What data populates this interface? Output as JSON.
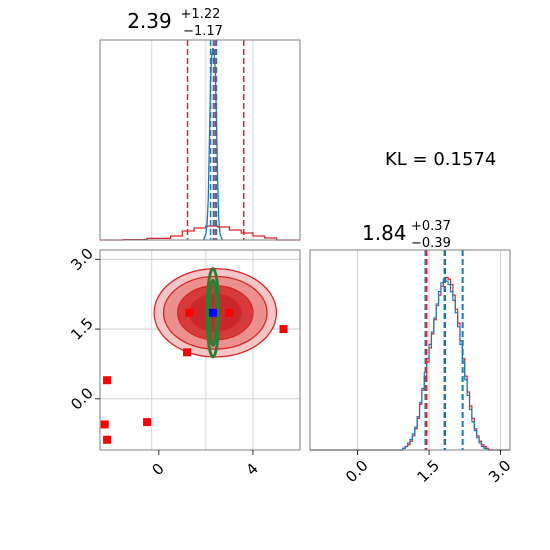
{
  "annotation": {
    "kl_label": "KL = 0.1574"
  },
  "chart_data": [
    {
      "type": "histogram",
      "panel": "param1-marginal",
      "title": {
        "value": "2.39",
        "plus": "+1.22",
        "minus": "−1.17"
      },
      "x_range": [
        -2.5,
        6.0
      ],
      "grid_x": [
        -0.3,
        2.0,
        4.0
      ],
      "series": [
        {
          "name": "",
          "color": "#d62728",
          "style": "step",
          "bins": [
            [
              -2.5,
              -1.5,
              0.0
            ],
            [
              -1.5,
              -0.5,
              0.002
            ],
            [
              -0.5,
              0.5,
              0.008
            ],
            [
              0.5,
              1.0,
              0.02
            ],
            [
              1.0,
              1.5,
              0.045
            ],
            [
              1.5,
              2.0,
              0.06
            ],
            [
              2.0,
              2.5,
              0.07
            ],
            [
              2.5,
              3.0,
              0.065
            ],
            [
              3.0,
              3.5,
              0.05
            ],
            [
              3.5,
              4.0,
              0.035
            ],
            [
              4.0,
              4.5,
              0.02
            ],
            [
              4.5,
              5.0,
              0.01
            ],
            [
              5.0,
              6.0,
              0.0
            ]
          ],
          "quantiles": [
            1.22,
            2.39,
            3.61
          ]
        },
        {
          "name": "",
          "color": "#1f77b4",
          "style": "line",
          "x": [
            1.9,
            2.0,
            2.05,
            2.1,
            2.15,
            2.2,
            2.25,
            2.3,
            2.35,
            2.4,
            2.45,
            2.5,
            2.55,
            2.6,
            2.7
          ],
          "y": [
            0.0,
            0.03,
            0.08,
            0.2,
            0.5,
            0.8,
            0.92,
            0.96,
            0.94,
            0.85,
            0.6,
            0.3,
            0.1,
            0.03,
            0.0
          ],
          "quantiles": [
            2.2,
            2.32,
            2.45
          ]
        }
      ],
      "ylim": [
        0,
        1.0
      ]
    },
    {
      "type": "histogram",
      "panel": "param2-marginal",
      "title": {
        "value": "1.84",
        "plus": "+0.37",
        "minus": "−0.39"
      },
      "x_range": [
        -1.0,
        3.2
      ],
      "xticks": [
        "0.0",
        "1.5",
        "3.0"
      ],
      "xtick_values": [
        0.0,
        1.5,
        3.0
      ],
      "grid_x": [
        0.0,
        1.5,
        3.0
      ],
      "series": [
        {
          "name": "",
          "color": "#d62728",
          "style": "step",
          "x_start": 0.9,
          "bin_width": 0.05,
          "counts": [
            0.0,
            0.01,
            0.02,
            0.03,
            0.05,
            0.08,
            0.12,
            0.18,
            0.26,
            0.34,
            0.42,
            0.5,
            0.58,
            0.66,
            0.74,
            0.82,
            0.88,
            0.93,
            0.96,
            0.98,
            0.97,
            0.94,
            0.88,
            0.8,
            0.72,
            0.62,
            0.52,
            0.42,
            0.33,
            0.25,
            0.18,
            0.12,
            0.08,
            0.05,
            0.03,
            0.02,
            0.01,
            0.0
          ],
          "quantiles": [
            1.45,
            1.84,
            2.21
          ]
        },
        {
          "name": "",
          "color": "#1f77b4",
          "style": "step",
          "x_start": 0.9,
          "bin_width": 0.05,
          "counts": [
            0.0,
            0.01,
            0.02,
            0.04,
            0.06,
            0.09,
            0.13,
            0.19,
            0.27,
            0.35,
            0.44,
            0.52,
            0.6,
            0.67,
            0.75,
            0.83,
            0.9,
            0.95,
            0.97,
            0.96,
            0.94,
            0.9,
            0.85,
            0.78,
            0.7,
            0.6,
            0.5,
            0.4,
            0.31,
            0.23,
            0.16,
            0.11,
            0.07,
            0.04,
            0.02,
            0.01,
            0.0,
            0.0
          ],
          "quantiles": [
            1.42,
            1.82,
            2.2
          ]
        }
      ],
      "ylim": [
        0,
        1.0
      ]
    },
    {
      "type": "scatter",
      "panel": "joint",
      "x_range": [
        -2.5,
        6.0
      ],
      "y_range": [
        -1.1,
        3.2
      ],
      "xticks": [
        "0",
        "4"
      ],
      "xtick_values": [
        0,
        4
      ],
      "yticks": [
        "0.0",
        "1.5",
        "3.0"
      ],
      "ytick_values": [
        0.0,
        1.5,
        3.0
      ],
      "grid_x": [
        -0.3,
        2.0,
        4.0
      ],
      "grid_y": [
        0.0,
        1.5,
        3.0
      ],
      "contours": [
        {
          "name": "",
          "color": "#d62728",
          "center": [
            2.4,
            1.85
          ],
          "levels": [
            {
              "rx": 2.6,
              "ry": 0.95,
              "fill": "#f6c6c6"
            },
            {
              "rx": 2.2,
              "ry": 0.78,
              "fill": "#ee8f8f"
            },
            {
              "rx": 1.6,
              "ry": 0.58,
              "fill": "#d63a3a"
            },
            {
              "rx": 1.1,
              "ry": 0.4,
              "fill": "#c9272b"
            }
          ]
        },
        {
          "name": "",
          "color": "#2e7d32",
          "center": [
            2.3,
            1.85
          ],
          "levels": [
            {
              "rx": 0.25,
              "ry": 0.95
            },
            {
              "rx": 0.15,
              "ry": 0.7
            }
          ]
        }
      ],
      "points": [
        {
          "x": 1.3,
          "y": 1.85,
          "color": "#ff0000"
        },
        {
          "x": 3.0,
          "y": 1.85,
          "color": "#ff0000"
        },
        {
          "x": 5.3,
          "y": 1.5,
          "color": "#ff0000"
        },
        {
          "x": 1.2,
          "y": 1.0,
          "color": "#ff0000"
        },
        {
          "x": -2.2,
          "y": 0.4,
          "color": "#ff0000"
        },
        {
          "x": -2.3,
          "y": -0.55,
          "color": "#ff0000"
        },
        {
          "x": -2.2,
          "y": -0.88,
          "color": "#ff0000"
        },
        {
          "x": -0.5,
          "y": -0.5,
          "color": "#ff0000"
        },
        {
          "x": 2.3,
          "y": 1.85,
          "color": "#0000ff"
        }
      ]
    }
  ]
}
